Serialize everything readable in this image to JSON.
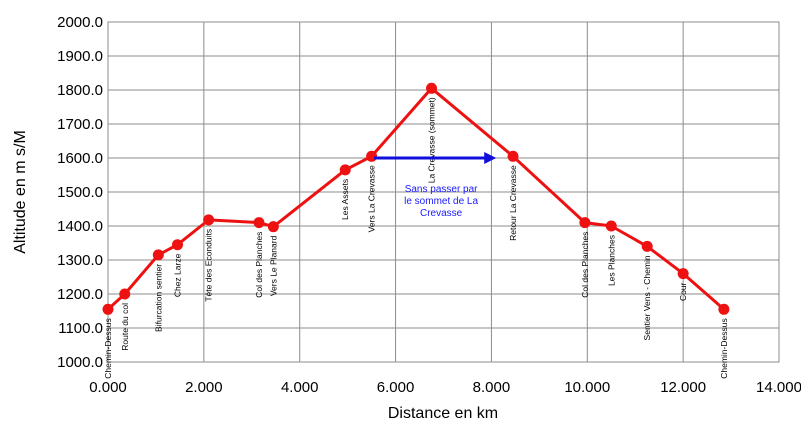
{
  "chart_data": {
    "type": "line",
    "xlabel": "Distance en km",
    "ylabel": "Altitude en m s/M",
    "xlim": [
      0,
      14
    ],
    "ylim": [
      1000,
      2000
    ],
    "x_ticks": [
      {
        "value": 0,
        "label": "0.000"
      },
      {
        "value": 2,
        "label": "2.000"
      },
      {
        "value": 4,
        "label": "4.000"
      },
      {
        "value": 6,
        "label": "6.000"
      },
      {
        "value": 8,
        "label": "8.000"
      },
      {
        "value": 10,
        "label": "10.000"
      },
      {
        "value": 12,
        "label": "12.000"
      },
      {
        "value": 14,
        "label": "14.000"
      }
    ],
    "y_ticks": [
      {
        "value": 1000,
        "label": "1000.0"
      },
      {
        "value": 1100,
        "label": "1100.0"
      },
      {
        "value": 1200,
        "label": "1200.0"
      },
      {
        "value": 1300,
        "label": "1300.0"
      },
      {
        "value": 1400,
        "label": "1400.0"
      },
      {
        "value": 1500,
        "label": "1500.0"
      },
      {
        "value": 1600,
        "label": "1600.0"
      },
      {
        "value": 1700,
        "label": "1700.0"
      },
      {
        "value": 1800,
        "label": "1800.0"
      },
      {
        "value": 1900,
        "label": "1900.0"
      },
      {
        "value": 2000,
        "label": "2000.0"
      }
    ],
    "grid": {
      "horizontal": true,
      "vertical": true
    },
    "line_color": "#ee1111",
    "marker_color": "#ee1111",
    "series": [
      {
        "points": [
          {
            "x": 0.0,
            "y": 1155,
            "label": "Chemin-Dessus"
          },
          {
            "x": 0.35,
            "y": 1200,
            "label": "Route du col"
          },
          {
            "x": 1.05,
            "y": 1315,
            "label": "Bifurcation sentier"
          },
          {
            "x": 1.45,
            "y": 1345,
            "label": "Chez Larze"
          },
          {
            "x": 2.1,
            "y": 1418,
            "label": "Tête des Econduits"
          },
          {
            "x": 3.15,
            "y": 1410,
            "label": "Col des Planches"
          },
          {
            "x": 3.45,
            "y": 1398,
            "label": "Vers Le Planard"
          },
          {
            "x": 4.95,
            "y": 1565,
            "label": "Les Assets"
          },
          {
            "x": 5.5,
            "y": 1605,
            "label": "Vers La Crevasse"
          },
          {
            "x": 6.75,
            "y": 1805,
            "label": "La Crevasse (sommet)"
          },
          {
            "x": 8.45,
            "y": 1605,
            "label": "Retour La Crevasse"
          },
          {
            "x": 9.95,
            "y": 1410,
            "label": "Col des Planches"
          },
          {
            "x": 10.5,
            "y": 1400,
            "label": "Les Planches"
          },
          {
            "x": 11.25,
            "y": 1340,
            "label": "Sentier Vens - Chemin"
          },
          {
            "x": 12.0,
            "y": 1260,
            "label": "Cour"
          },
          {
            "x": 12.85,
            "y": 1155,
            "label": "Chemin-Dessus"
          }
        ]
      }
    ],
    "arrow": {
      "from": {
        "x": 5.55,
        "y": 1600
      },
      "to": {
        "x": 8.1,
        "y": 1600
      },
      "color": "#1010dd"
    },
    "annotation": {
      "lines": [
        "Sans passer par",
        "le sommet de La",
        "Crevasse"
      ],
      "x": 6.95,
      "y": 1500,
      "color": "#1a1aff"
    }
  }
}
